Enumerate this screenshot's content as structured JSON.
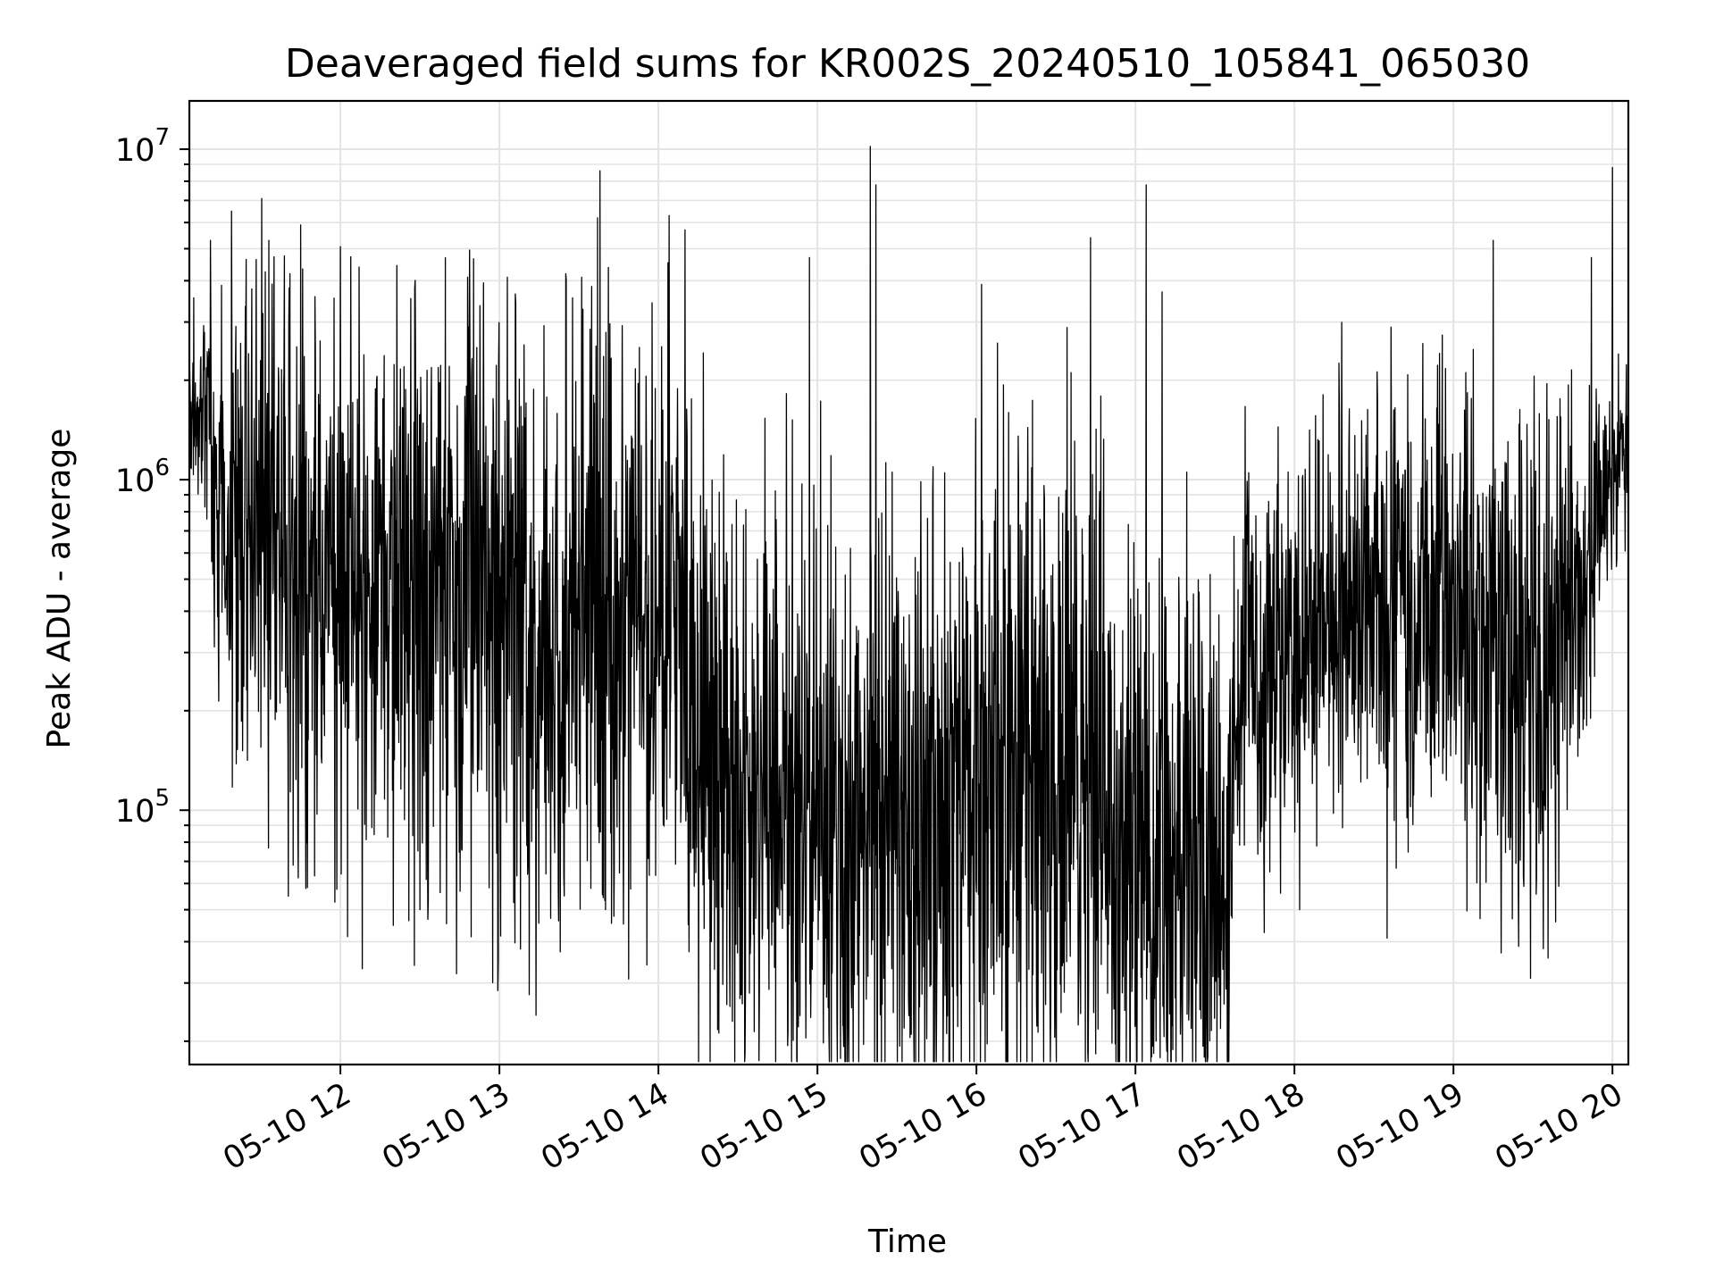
{
  "chart_data": {
    "type": "line",
    "title": "Deaveraged field sums for KR002S_20240510_105841_065030",
    "xlabel": "Time",
    "ylabel": "Peak ADU - average",
    "y_scale": "log",
    "ylim": [
      17000,
      14000000
    ],
    "xlim": [
      "2024-05-10 11:03",
      "2024-05-10 20:06"
    ],
    "grid": "major and minor, light gray",
    "legend": "none",
    "x_ticks": [
      {
        "x": "2024-05-10 12:00",
        "label": "05-10 12"
      },
      {
        "x": "2024-05-10 13:00",
        "label": "05-10 13"
      },
      {
        "x": "2024-05-10 14:00",
        "label": "05-10 14"
      },
      {
        "x": "2024-05-10 15:00",
        "label": "05-10 15"
      },
      {
        "x": "2024-05-10 16:00",
        "label": "05-10 16"
      },
      {
        "x": "2024-05-10 17:00",
        "label": "05-10 17"
      },
      {
        "x": "2024-05-10 18:00",
        "label": "05-10 18"
      },
      {
        "x": "2024-05-10 19:00",
        "label": "05-10 19"
      },
      {
        "x": "2024-05-10 20:00",
        "label": "05-10 20"
      }
    ],
    "y_ticks": [
      {
        "y": 100000,
        "base": "10",
        "exp": "5"
      },
      {
        "y": 1000000,
        "base": "10",
        "exp": "6"
      },
      {
        "y": 10000000,
        "base": "10",
        "exp": "7"
      }
    ],
    "series": [
      {
        "color": "#000000",
        "x": [
          "2024-05-10 11:03",
          "2024-05-10 11:08",
          "2024-05-10 11:10",
          "2024-05-10 11:15",
          "2024-05-10 11:20",
          "2024-05-10 11:25",
          "2024-05-10 11:30",
          "2024-05-10 11:35",
          "2024-05-10 11:40",
          "2024-05-10 11:45",
          "2024-05-10 11:50",
          "2024-05-10 11:55",
          "2024-05-10 12:00",
          "2024-05-10 12:10",
          "2024-05-10 12:20",
          "2024-05-10 12:30",
          "2024-05-10 12:40",
          "2024-05-10 12:50",
          "2024-05-10 13:00",
          "2024-05-10 13:10",
          "2024-05-10 13:20",
          "2024-05-10 13:30",
          "2024-05-10 13:40",
          "2024-05-10 13:50",
          "2024-05-10 14:00",
          "2024-05-10 14:10",
          "2024-05-10 14:15",
          "2024-05-10 14:20",
          "2024-05-10 14:30",
          "2024-05-10 14:40",
          "2024-05-10 14:50",
          "2024-05-10 15:00",
          "2024-05-10 15:10",
          "2024-05-10 15:20",
          "2024-05-10 15:30",
          "2024-05-10 15:40",
          "2024-05-10 15:50",
          "2024-05-10 16:00",
          "2024-05-10 16:10",
          "2024-05-10 16:20",
          "2024-05-10 16:30",
          "2024-05-10 16:40",
          "2024-05-10 16:50",
          "2024-05-10 17:00",
          "2024-05-10 17:10",
          "2024-05-10 17:20",
          "2024-05-10 17:30",
          "2024-05-10 17:35",
          "2024-05-10 17:40",
          "2024-05-10 17:50",
          "2024-05-10 18:00",
          "2024-05-10 18:10",
          "2024-05-10 18:20",
          "2024-05-10 18:30",
          "2024-05-10 18:40",
          "2024-05-10 18:50",
          "2024-05-10 19:00",
          "2024-05-10 19:10",
          "2024-05-10 19:20",
          "2024-05-10 19:30",
          "2024-05-10 19:40",
          "2024-05-10 19:50",
          "2024-05-10 20:00",
          "2024-05-10 20:06"
        ],
        "median": [
          1500000,
          1500000,
          1600000,
          650000,
          700000,
          750000,
          650000,
          600000,
          620000,
          580000,
          600000,
          560000,
          550000,
          520000,
          480000,
          450000,
          450000,
          420000,
          400000,
          380000,
          360000,
          360000,
          380000,
          380000,
          380000,
          330000,
          200000,
          150000,
          120000,
          110000,
          100000,
          95000,
          90000,
          90000,
          85000,
          90000,
          100000,
          120000,
          130000,
          120000,
          120000,
          110000,
          100000,
          75000,
          70000,
          65000,
          65000,
          70000,
          250000,
          300000,
          350000,
          400000,
          420000,
          450000,
          460000,
          470000,
          460000,
          420000,
          300000,
          250000,
          280000,
          500000,
          1200000,
          1300000
        ],
        "spread": [
          0.18,
          0.18,
          0.2,
          0.45,
          0.5,
          0.5,
          0.55,
          0.55,
          0.55,
          0.55,
          0.55,
          0.55,
          0.55,
          0.55,
          0.55,
          0.55,
          0.55,
          0.55,
          0.55,
          0.55,
          0.55,
          0.55,
          0.55,
          0.55,
          0.55,
          0.55,
          0.6,
          0.6,
          0.6,
          0.6,
          0.6,
          0.6,
          0.6,
          0.6,
          0.6,
          0.6,
          0.62,
          0.65,
          0.65,
          0.65,
          0.65,
          0.65,
          0.62,
          0.55,
          0.55,
          0.55,
          0.55,
          0.5,
          0.42,
          0.4,
          0.38,
          0.38,
          0.38,
          0.38,
          0.38,
          0.4,
          0.45,
          0.5,
          0.55,
          0.55,
          0.5,
          0.3,
          0.2,
          0.18
        ],
        "spikes": [
          {
            "x": "2024-05-10 11:11",
            "y": 5300000
          },
          {
            "x": "2024-05-10 11:33",
            "y": 5300000
          },
          {
            "x": "2024-05-10 11:45",
            "y": 5900000
          },
          {
            "x": "2024-05-10 11:41",
            "y": 4200000
          },
          {
            "x": "2024-05-10 12:07",
            "y": 4400000
          },
          {
            "x": "2024-05-10 12:28",
            "y": 3800000
          },
          {
            "x": "2024-05-10 12:48",
            "y": 4100000
          },
          {
            "x": "2024-05-10 13:03",
            "y": 4100000
          },
          {
            "x": "2024-05-10 13:25",
            "y": 4200000
          },
          {
            "x": "2024-05-10 13:31",
            "y": 4100000
          },
          {
            "x": "2024-05-10 13:38",
            "y": 8600000
          },
          {
            "x": "2024-05-10 13:37",
            "y": 6200000
          },
          {
            "x": "2024-05-10 14:04",
            "y": 6300000
          },
          {
            "x": "2024-05-10 14:10",
            "y": 5700000
          },
          {
            "x": "2024-05-10 14:57",
            "y": 4700000
          },
          {
            "x": "2024-05-10 15:20",
            "y": 10200000
          },
          {
            "x": "2024-05-10 15:22",
            "y": 7800000
          },
          {
            "x": "2024-05-10 16:02",
            "y": 3900000
          },
          {
            "x": "2024-05-10 16:43",
            "y": 5400000
          },
          {
            "x": "2024-05-10 17:04",
            "y": 7800000
          },
          {
            "x": "2024-05-10 17:10",
            "y": 3700000
          },
          {
            "x": "2024-05-10 19:15",
            "y": 5300000
          },
          {
            "x": "2024-05-10 19:52",
            "y": 4700000
          },
          {
            "x": "2024-05-10 20:00",
            "y": 8800000
          }
        ],
        "dips": [
          {
            "x": "2024-05-10 11:47",
            "y": 58000
          },
          {
            "x": "2024-05-10 12:30",
            "y": 50000
          },
          {
            "x": "2024-05-10 13:08",
            "y": 38000
          },
          {
            "x": "2024-05-10 13:40",
            "y": 50000
          },
          {
            "x": "2024-05-10 14:20",
            "y": 40000
          },
          {
            "x": "2024-05-10 14:58",
            "y": 33000
          },
          {
            "x": "2024-05-10 15:25",
            "y": 31000
          },
          {
            "x": "2024-05-10 15:45",
            "y": 29000
          },
          {
            "x": "2024-05-10 16:03",
            "y": 28000
          },
          {
            "x": "2024-05-10 16:30",
            "y": 23000
          },
          {
            "x": "2024-05-10 16:55",
            "y": 28000
          },
          {
            "x": "2024-05-10 17:17",
            "y": 21000
          },
          {
            "x": "2024-05-10 17:33",
            "y": 33000
          },
          {
            "x": "2024-05-10 18:02",
            "y": 50000
          },
          {
            "x": "2024-05-10 18:35",
            "y": 41000
          },
          {
            "x": "2024-05-10 19:10",
            "y": 47000
          },
          {
            "x": "2024-05-10 19:18",
            "y": 37000
          }
        ]
      }
    ]
  }
}
